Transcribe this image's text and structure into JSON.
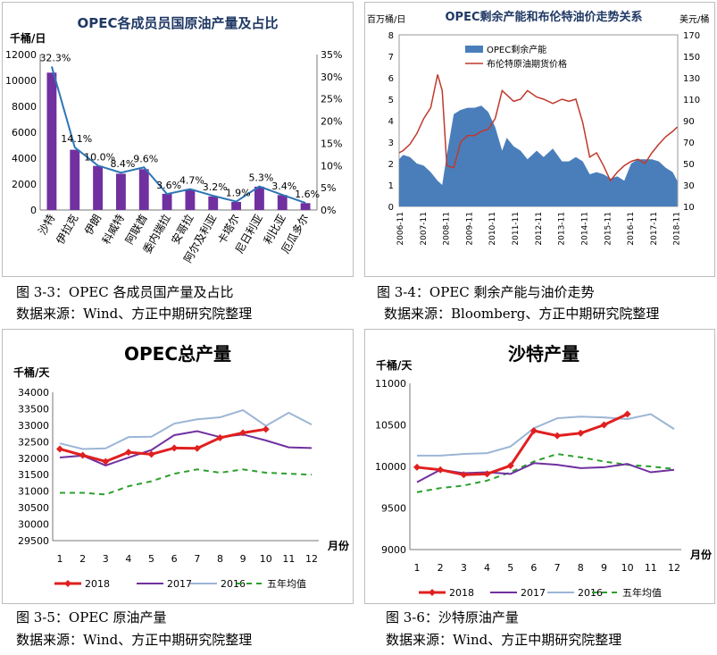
{
  "captions": {
    "c1": "图 3-3：OPEC 各成员国产量及占比",
    "s1": "数据来源：Wind、方正中期研究院整理",
    "c2": "图 3-4：OPEC 剩余产能与油价走势",
    "s2": "数据来源：Bloomberg、方正中期研究院整理",
    "c3": "图 3-5：OPEC 原油产量",
    "s3": "数据来源：Wind、方正中期研究院整理",
    "c4": "图 3-6：沙特原油产量",
    "s4": "数据来源：Wind、方正中期研究院整理"
  },
  "chart_data": [
    {
      "type": "bar",
      "title": "OPEC各成员员国原油产量及占比",
      "ylabel": "千桶/日",
      "categories": [
        "沙特",
        "伊拉克",
        "伊朗",
        "科威特",
        "阿联酋",
        "委内瑞拉",
        "安哥拉",
        "阿尔及利亚",
        "卡塔尔",
        "尼日利亚",
        "利比亚",
        "厄瓜多尔"
      ],
      "ylim": [
        0,
        12000
      ],
      "yticks": [
        0,
        2000,
        4000,
        6000,
        8000,
        10000,
        12000
      ],
      "y2lim": [
        0,
        35
      ],
      "y2ticks": [
        "0%",
        "5%",
        "10%",
        "15%",
        "20%",
        "25%",
        "30%",
        "35%"
      ],
      "series": [
        {
          "values": [
            10600,
            4650,
            3400,
            2800,
            3150,
            1250,
            1600,
            1050,
            620,
            1800,
            1150,
            530
          ]
        },
        {
          "values": [
            32.3,
            14.1,
            10.0,
            8.4,
            9.6,
            3.6,
            4.7,
            3.2,
            1.9,
            5.3,
            3.4,
            1.6
          ],
          "labels": [
            "32.3%",
            "14.1%",
            "10.0%",
            "8.4%",
            "9.6%",
            "3.6%",
            "4.7%",
            "3.2%",
            "1.9%",
            "5.3%",
            "3.4%",
            "1.6%"
          ]
        }
      ],
      "colors": {
        "bar": "#7030a0",
        "line": "#2e75b6"
      }
    },
    {
      "type": "area",
      "title": "OPEC剩余产能和布伦特油价走势关系",
      "ylabel": "百万桶/日",
      "y2label": "美元/桶",
      "ylim": [
        0,
        8
      ],
      "yticks": [
        0,
        1,
        2,
        3,
        4,
        5,
        6,
        7,
        8
      ],
      "y2lim": [
        10,
        170
      ],
      "y2ticks": [
        10,
        30,
        50,
        70,
        90,
        110,
        130,
        150,
        170
      ],
      "xticks": [
        "2006-11",
        "2007-11",
        "2008-11",
        "2009-11",
        "2010-11",
        "2011-11",
        "2012-11",
        "2013-11",
        "2014-11",
        "2015-11",
        "2016-11",
        "2017-11",
        "2018-11"
      ],
      "x": [
        2006.83,
        2007.0,
        2007.3,
        2007.6,
        2007.9,
        2008.2,
        2008.5,
        2008.7,
        2008.9,
        2009.2,
        2009.5,
        2009.8,
        2010.1,
        2010.4,
        2010.7,
        2011.0,
        2011.3,
        2011.5,
        2011.8,
        2012.1,
        2012.4,
        2012.8,
        2013.1,
        2013.5,
        2013.9,
        2014.2,
        2014.5,
        2014.8,
        2015.1,
        2015.4,
        2015.7,
        2016.0,
        2016.3,
        2016.6,
        2016.9,
        2017.2,
        2017.5,
        2017.8,
        2018.1,
        2018.4,
        2018.7,
        2018.9
      ],
      "series": [
        {
          "name": "OPEC剩余产能",
          "values": [
            2.2,
            2.4,
            2.3,
            2.0,
            1.9,
            1.6,
            1.2,
            1.0,
            2.4,
            4.3,
            4.5,
            4.6,
            4.6,
            4.7,
            4.4,
            3.7,
            2.6,
            3.2,
            2.8,
            2.6,
            2.2,
            2.6,
            2.3,
            2.7,
            2.1,
            2.1,
            2.3,
            2.1,
            1.5,
            1.6,
            1.5,
            1.3,
            1.4,
            1.2,
            2.0,
            2.2,
            2.2,
            2.2,
            2.1,
            1.8,
            1.6,
            1.2
          ]
        },
        {
          "name": "布伦特原油期货价格",
          "values": [
            60,
            62,
            68,
            78,
            92,
            102,
            133,
            118,
            48,
            46,
            70,
            76,
            76,
            80,
            82,
            92,
            118,
            114,
            108,
            110,
            118,
            112,
            110,
            106,
            110,
            108,
            110,
            88,
            56,
            60,
            48,
            34,
            42,
            48,
            52,
            54,
            50,
            60,
            68,
            75,
            80,
            84
          ]
        }
      ],
      "colors": {
        "area": "#4a7ebb",
        "price": "#c0392b"
      }
    },
    {
      "type": "line",
      "title": "OPEC总产量",
      "ylabel": "千桶/天",
      "xlabel": "月份",
      "categories": [
        "1",
        "2",
        "3",
        "4",
        "5",
        "6",
        "7",
        "8",
        "9",
        "10",
        "11",
        "12"
      ],
      "ylim": [
        29500,
        34000
      ],
      "yticks": [
        29500,
        30000,
        30500,
        31000,
        31500,
        32000,
        32500,
        33000,
        33500,
        34000
      ],
      "series": [
        {
          "name": "2018",
          "values": [
            32280,
            32090,
            31900,
            32180,
            32120,
            32310,
            32300,
            32620,
            32770,
            32880,
            null,
            null
          ]
        },
        {
          "name": "2017",
          "values": [
            32020,
            32080,
            31780,
            32020,
            32250,
            32700,
            32820,
            32640,
            32720,
            32540,
            32330,
            32310
          ]
        },
        {
          "name": "2016",
          "values": [
            32450,
            32280,
            32300,
            32640,
            32650,
            33050,
            33180,
            33240,
            33460,
            32980,
            33380,
            33020
          ]
        },
        {
          "name": "五年均值",
          "values": [
            30950,
            30950,
            30900,
            31150,
            31300,
            31530,
            31660,
            31560,
            31660,
            31560,
            31530,
            31500
          ]
        }
      ],
      "colors": {
        "2018": "#e02020",
        "2017": "#7030a0",
        "2016": "#9bb5d6",
        "avg": "#2ca02c"
      }
    },
    {
      "type": "line",
      "title": "沙特产量",
      "ylabel": "千桶/天",
      "xlabel": "月份",
      "categories": [
        "1",
        "2",
        "3",
        "4",
        "5",
        "6",
        "7",
        "8",
        "9",
        "10",
        "11",
        "12"
      ],
      "ylim": [
        9000,
        11000
      ],
      "yticks": [
        9000,
        9500,
        10000,
        10500,
        11000
      ],
      "series": [
        {
          "name": "2018",
          "values": [
            9990,
            9960,
            9900,
            9910,
            10010,
            10430,
            10370,
            10400,
            10500,
            10630,
            null,
            null
          ]
        },
        {
          "name": "2017",
          "values": [
            9810,
            9960,
            9920,
            9930,
            9910,
            10040,
            10020,
            9980,
            9990,
            10030,
            9930,
            9960
          ]
        },
        {
          "name": "2016",
          "values": [
            10130,
            10130,
            10150,
            10160,
            10240,
            10460,
            10580,
            10600,
            10590,
            10570,
            10630,
            10450
          ]
        },
        {
          "name": "五年均值",
          "values": [
            9690,
            9740,
            9770,
            9830,
            9930,
            10060,
            10150,
            10110,
            10060,
            10020,
            10000,
            9970
          ]
        }
      ],
      "colors": {
        "2018": "#e02020",
        "2017": "#7030a0",
        "2016": "#9bb5d6",
        "avg": "#2ca02c"
      }
    }
  ]
}
